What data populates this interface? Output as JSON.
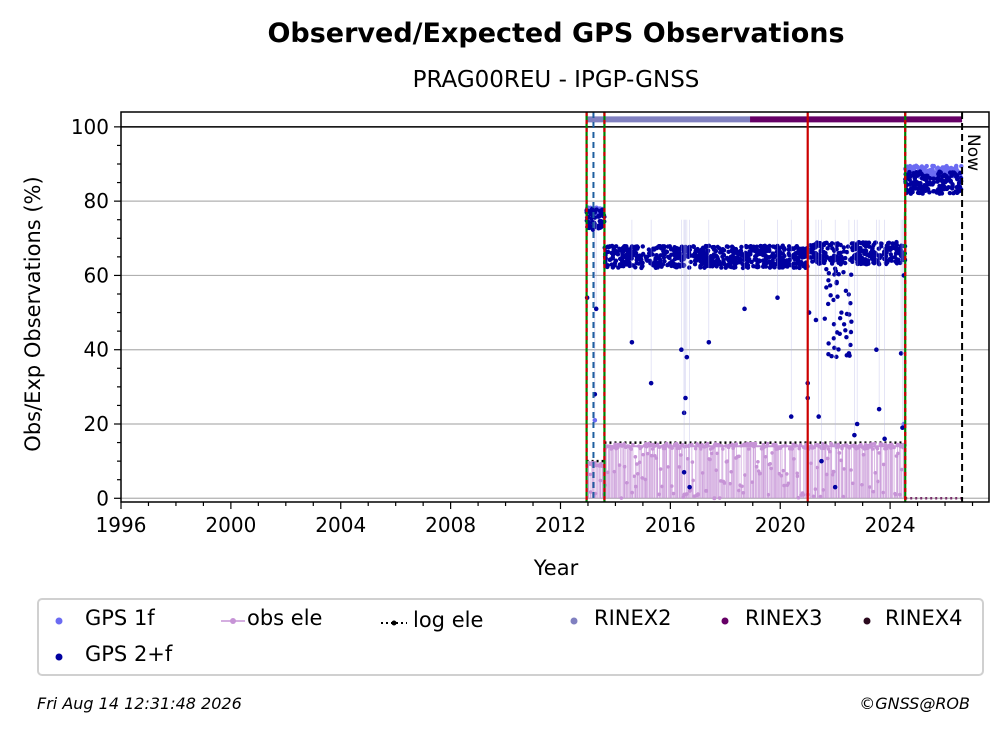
{
  "chart_data": {
    "type": "scatter",
    "title": "Observed/Expected GPS Observations",
    "subtitle": "PRAG00REU - IPGP-GNSS",
    "xlabel": "Year",
    "ylabel": "Obs/Exp Observations (%)",
    "xlim": [
      1996,
      2027.6
    ],
    "ylim": [
      -1,
      104
    ],
    "x_ticks": [
      "1996",
      "2000",
      "2004",
      "2008",
      "2012",
      "2016",
      "2020",
      "2024"
    ],
    "y_ticks": [
      "0",
      "20",
      "40",
      "60",
      "80",
      "100"
    ],
    "grid": "horizontal",
    "now_label": "Now",
    "now_year": 2026.62,
    "reference_line_y": 100,
    "colors": {
      "gps_1f": "#6b6bf2",
      "gps_2f": "#0000a0",
      "obs_ele": "#c693d6",
      "log_ele": "#000000",
      "rinex2": "#8080c0",
      "rinex3": "#660066",
      "rinex4": "#2b0a1e",
      "event_green": "#008000",
      "event_red": "#cc0000",
      "event_blue": "#1f5f9f"
    },
    "event_lines": [
      {
        "x": 2012.95,
        "style": "green-red"
      },
      {
        "x": 2013.2,
        "style": "blue-dash"
      },
      {
        "x": 2013.6,
        "style": "green-red"
      },
      {
        "x": 2021.0,
        "style": "red"
      },
      {
        "x": 2024.55,
        "style": "green-red"
      }
    ],
    "rinex_bars": [
      {
        "name": "RINEX2",
        "start": 2012.95,
        "end": 2018.9
      },
      {
        "name": "RINEX3",
        "start": 2018.9,
        "end": 2026.62
      }
    ],
    "log_ele_segments": [
      {
        "start": 2012.95,
        "end": 2013.6,
        "value": 10
      },
      {
        "start": 2013.6,
        "end": 2024.55,
        "value": 15
      },
      {
        "start": 2024.55,
        "end": 2026.62,
        "value": 0
      }
    ],
    "series": [
      {
        "name": "GPS 2+f",
        "segments": [
          {
            "start": 2012.95,
            "end": 2013.6,
            "level": 75
          },
          {
            "start": 2013.6,
            "end": 2021.0,
            "level": 65
          },
          {
            "start": 2021.0,
            "end": 2024.55,
            "level": 66
          },
          {
            "start": 2024.55,
            "end": 2026.6,
            "level": 85
          }
        ],
        "outliers": [
          [
            2012.97,
            54
          ],
          [
            2013.25,
            28
          ],
          [
            2013.3,
            51
          ],
          [
            2014.6,
            42
          ],
          [
            2015.3,
            31
          ],
          [
            2016.4,
            40
          ],
          [
            2016.5,
            23
          ],
          [
            2016.5,
            7
          ],
          [
            2016.55,
            27
          ],
          [
            2016.6,
            38
          ],
          [
            2016.7,
            3
          ],
          [
            2017.4,
            42
          ],
          [
            2018.7,
            51
          ],
          [
            2019.9,
            54
          ],
          [
            2020.4,
            22
          ],
          [
            2021.0,
            31
          ],
          [
            2021.0,
            27
          ],
          [
            2021.05,
            50
          ],
          [
            2021.3,
            48
          ],
          [
            2021.4,
            22
          ],
          [
            2021.5,
            10
          ],
          [
            2022.0,
            3
          ],
          [
            2022.5,
            39
          ],
          [
            2022.7,
            17
          ],
          [
            2022.8,
            20
          ],
          [
            2023.5,
            40
          ],
          [
            2023.6,
            24
          ],
          [
            2023.8,
            16
          ],
          [
            2024.4,
            39
          ],
          [
            2024.45,
            19
          ],
          [
            2024.5,
            60
          ]
        ]
      },
      {
        "name": "GPS 1f",
        "segments": [
          {
            "start": 2012.95,
            "end": 2013.6,
            "level": 77
          },
          {
            "start": 2024.55,
            "end": 2026.6,
            "level": 88
          }
        ],
        "outliers": [
          [
            2013.25,
            21
          ],
          [
            2024.5,
            20
          ]
        ]
      },
      {
        "name": "obs ele",
        "segments": [
          {
            "start": 2012.95,
            "end": 2013.6,
            "level": 9
          },
          {
            "start": 2013.6,
            "end": 2024.55,
            "level": 14
          }
        ],
        "outliers": [
          [
            2016.5,
            1
          ],
          [
            2016.7,
            2
          ],
          [
            2017.0,
            1
          ],
          [
            2017.3,
            2
          ],
          [
            2017.6,
            0
          ],
          [
            2021.0,
            1
          ]
        ]
      },
      {
        "name": "log ele"
      },
      {
        "name": "RINEX2"
      },
      {
        "name": "RINEX3"
      },
      {
        "name": "RINEX4"
      }
    ]
  },
  "legend": [
    {
      "label": "GPS 1f"
    },
    {
      "label": "obs ele"
    },
    {
      "label": "log ele"
    },
    {
      "label": "RINEX2"
    },
    {
      "label": "RINEX3"
    },
    {
      "label": "RINEX4"
    },
    {
      "label": "GPS 2+f"
    }
  ],
  "footer": {
    "timestamp": "Fri Aug 14 12:31:48 2026",
    "credit": "©GNSS@ROB"
  }
}
